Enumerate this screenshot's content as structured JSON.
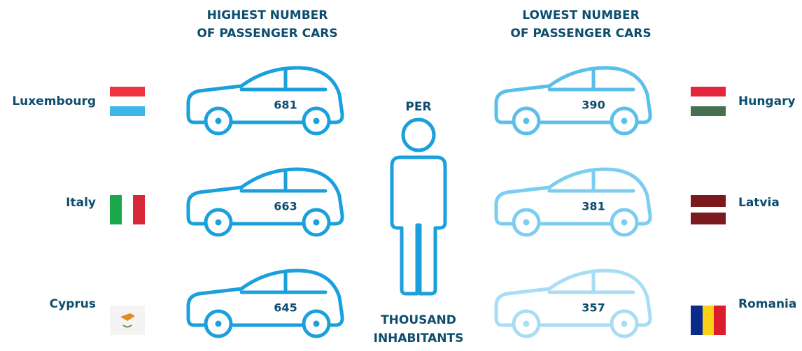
{
  "left_header": [
    "HIGHEST NUMBER",
    "OF PASSENGER CARS"
  ],
  "right_header": [
    "LOWEST NUMBER",
    "OF PASSENGER CARS"
  ],
  "center": {
    "top": "PER",
    "bottom": [
      "THOUSAND",
      "INHABITANTS"
    ]
  },
  "highest": [
    {
      "country": "Luxembourg",
      "value": 681
    },
    {
      "country": "Italy",
      "value": 663
    },
    {
      "country": "Cyprus",
      "value": 645
    }
  ],
  "lowest": [
    {
      "country": "Hungary",
      "value": 390
    },
    {
      "country": "Latvia",
      "value": 381
    },
    {
      "country": "Romania",
      "value": 357
    }
  ]
}
